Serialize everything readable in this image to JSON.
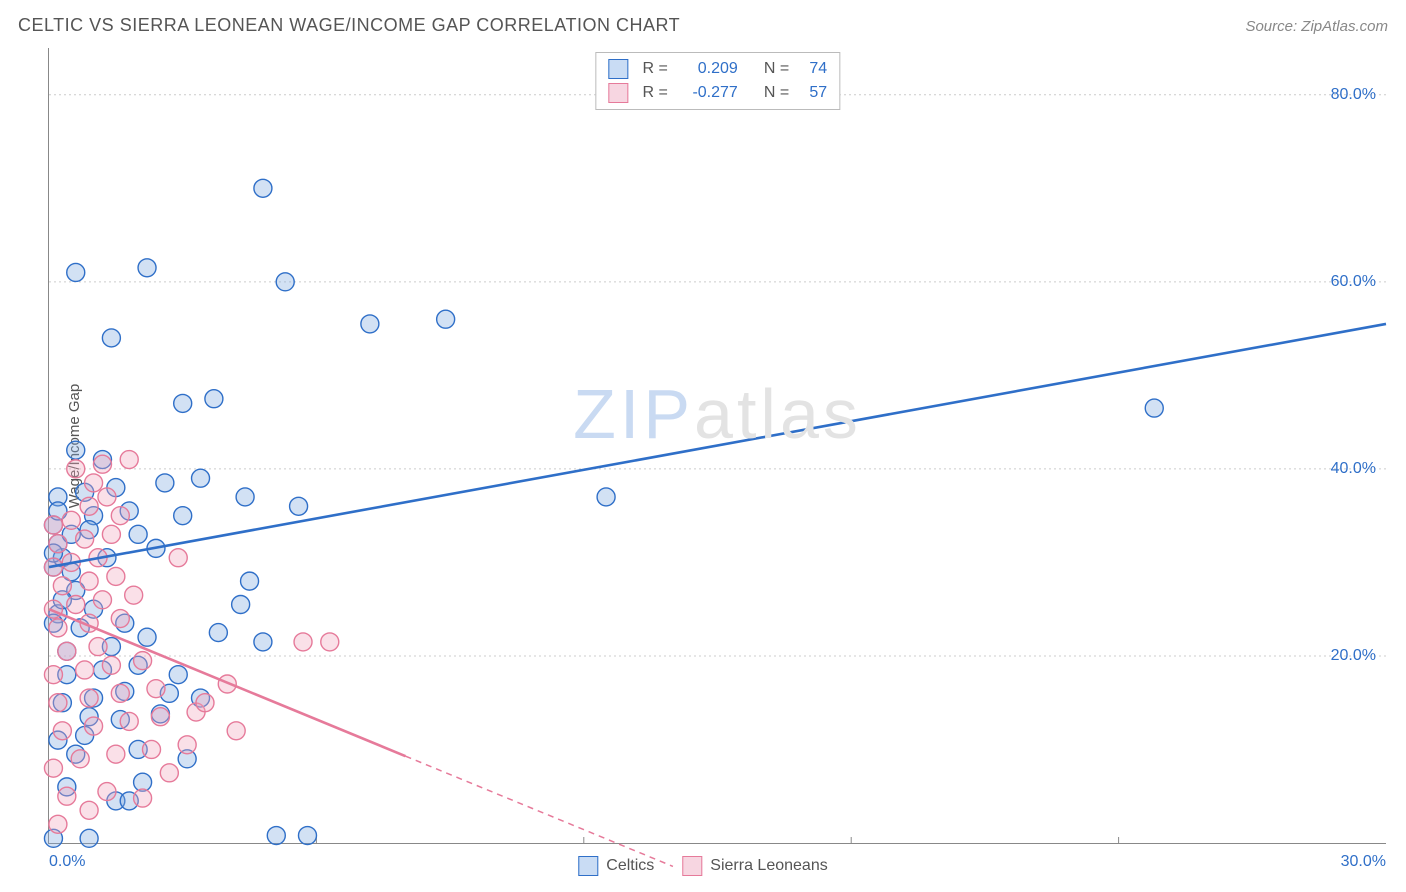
{
  "title": "CELTIC VS SIERRA LEONEAN WAGE/INCOME GAP CORRELATION CHART",
  "source": "Source: ZipAtlas.com",
  "ylabel": "Wage/Income Gap",
  "watermark": {
    "text_zip": "ZIP",
    "text_atlas": "atlas",
    "color_zip": "#c9daf2",
    "color_atlas": "#e3e3e3"
  },
  "chart": {
    "type": "scatter",
    "xlim": [
      0,
      30
    ],
    "ylim": [
      0,
      85
    ],
    "xticks": [
      0.0,
      30.0
    ],
    "xtick_labels": [
      "0.0%",
      "30.0%"
    ],
    "xtick_color": "#2f6fc8",
    "yticks": [
      20.0,
      40.0,
      60.0,
      80.0
    ],
    "ytick_labels": [
      "20.0%",
      "40.0%",
      "60.0%",
      "80.0%"
    ],
    "ytick_color": "#2f6fc8",
    "grid_color": "#cccccc",
    "grid_dash": "2 3",
    "axis_color": "#888888",
    "background_color": "#ffffff",
    "x_minor_tick_count": 4,
    "marker_radius": 9,
    "marker_fill_opacity": 0.35,
    "marker_stroke_width": 1.4,
    "trend_line_width": 2.6,
    "series": [
      {
        "name": "Celtics",
        "color_stroke": "#2f6fc8",
        "color_fill": "#7ea9e0",
        "r_value": "0.209",
        "n_value": "74",
        "trend": {
          "x1": 0,
          "y1": 29.5,
          "x2": 30,
          "y2": 55.5,
          "solid_until_x": 30
        },
        "points": [
          [
            0.1,
            0.5
          ],
          [
            0.9,
            0.5
          ],
          [
            5.1,
            0.8
          ],
          [
            5.8,
            0.8
          ],
          [
            1.5,
            4.5
          ],
          [
            1.8,
            4.5
          ],
          [
            2.1,
            6.5
          ],
          [
            0.6,
            9.5
          ],
          [
            3.1,
            9.0
          ],
          [
            0.2,
            11.0
          ],
          [
            1.6,
            13.2
          ],
          [
            2.5,
            13.8
          ],
          [
            0.3,
            15.0
          ],
          [
            1.0,
            15.5
          ],
          [
            1.7,
            16.2
          ],
          [
            2.7,
            16.0
          ],
          [
            3.4,
            15.5
          ],
          [
            4.8,
            21.5
          ],
          [
            1.2,
            18.5
          ],
          [
            2.0,
            19.0
          ],
          [
            0.4,
            20.5
          ],
          [
            1.4,
            21.0
          ],
          [
            2.2,
            22.0
          ],
          [
            3.8,
            22.5
          ],
          [
            0.2,
            24.5
          ],
          [
            1.0,
            25.0
          ],
          [
            0.6,
            27.0
          ],
          [
            4.3,
            25.5
          ],
          [
            0.1,
            29.5
          ],
          [
            0.3,
            30.5
          ],
          [
            1.3,
            30.5
          ],
          [
            0.2,
            32.0
          ],
          [
            0.5,
            33.0
          ],
          [
            0.1,
            34.0
          ],
          [
            1.0,
            35.0
          ],
          [
            1.8,
            35.5
          ],
          [
            3.0,
            35.0
          ],
          [
            5.6,
            36.0
          ],
          [
            4.4,
            37.0
          ],
          [
            0.2,
            37.0
          ],
          [
            0.8,
            37.5
          ],
          [
            1.5,
            38.0
          ],
          [
            2.6,
            38.5
          ],
          [
            3.4,
            39.0
          ],
          [
            1.2,
            41.0
          ],
          [
            0.6,
            42.0
          ],
          [
            3.0,
            47.0
          ],
          [
            3.7,
            47.5
          ],
          [
            5.3,
            60.0
          ],
          [
            1.4,
            54.0
          ],
          [
            0.6,
            61.0
          ],
          [
            2.2,
            61.5
          ],
          [
            4.8,
            70.0
          ],
          [
            7.2,
            55.5
          ],
          [
            8.9,
            56.0
          ],
          [
            12.5,
            37.0
          ],
          [
            24.8,
            46.5
          ],
          [
            0.9,
            13.5
          ],
          [
            2.0,
            10.0
          ],
          [
            0.4,
            6.0
          ],
          [
            4.5,
            28.0
          ],
          [
            0.3,
            26.0
          ],
          [
            0.7,
            23.0
          ],
          [
            2.4,
            31.5
          ],
          [
            0.9,
            33.5
          ],
          [
            0.2,
            35.5
          ],
          [
            2.0,
            33.0
          ],
          [
            0.1,
            31.0
          ],
          [
            0.5,
            29.0
          ],
          [
            0.1,
            23.5
          ],
          [
            1.7,
            23.5
          ],
          [
            0.4,
            18.0
          ],
          [
            2.9,
            18.0
          ],
          [
            0.8,
            11.5
          ]
        ]
      },
      {
        "name": "Sierra Leoneans",
        "color_stroke": "#e67a9a",
        "color_fill": "#f0a7bd",
        "r_value": "-0.277",
        "n_value": "57",
        "trend": {
          "x1": 0,
          "y1": 25.0,
          "x2": 14.0,
          "y2": -2.5,
          "solid_until_x": 8.0
        },
        "points": [
          [
            0.2,
            2.0
          ],
          [
            0.9,
            3.5
          ],
          [
            0.4,
            5.0
          ],
          [
            1.3,
            5.5
          ],
          [
            2.1,
            4.8
          ],
          [
            0.1,
            8.0
          ],
          [
            0.7,
            9.0
          ],
          [
            1.5,
            9.5
          ],
          [
            2.3,
            10.0
          ],
          [
            3.1,
            10.5
          ],
          [
            0.3,
            12.0
          ],
          [
            1.0,
            12.5
          ],
          [
            1.8,
            13.0
          ],
          [
            2.5,
            13.5
          ],
          [
            3.3,
            14.0
          ],
          [
            0.2,
            15.0
          ],
          [
            0.9,
            15.5
          ],
          [
            1.6,
            16.0
          ],
          [
            2.4,
            16.5
          ],
          [
            4.0,
            17.0
          ],
          [
            0.1,
            18.0
          ],
          [
            0.8,
            18.5
          ],
          [
            1.4,
            19.0
          ],
          [
            2.1,
            19.5
          ],
          [
            0.4,
            20.5
          ],
          [
            1.1,
            21.0
          ],
          [
            5.7,
            21.5
          ],
          [
            6.3,
            21.5
          ],
          [
            0.2,
            23.0
          ],
          [
            0.9,
            23.5
          ],
          [
            1.6,
            24.0
          ],
          [
            0.1,
            25.0
          ],
          [
            0.6,
            25.5
          ],
          [
            1.2,
            26.0
          ],
          [
            1.9,
            26.5
          ],
          [
            0.3,
            27.5
          ],
          [
            0.9,
            28.0
          ],
          [
            1.5,
            28.5
          ],
          [
            0.1,
            29.5
          ],
          [
            0.5,
            30.0
          ],
          [
            1.1,
            30.5
          ],
          [
            2.9,
            30.5
          ],
          [
            0.2,
            32.0
          ],
          [
            0.8,
            32.5
          ],
          [
            1.4,
            33.0
          ],
          [
            0.1,
            34.0
          ],
          [
            0.5,
            34.5
          ],
          [
            1.6,
            35.0
          ],
          [
            0.9,
            36.0
          ],
          [
            1.3,
            37.0
          ],
          [
            1.0,
            38.5
          ],
          [
            0.6,
            40.0
          ],
          [
            1.2,
            40.5
          ],
          [
            1.8,
            41.0
          ],
          [
            3.5,
            15.0
          ],
          [
            4.2,
            12.0
          ],
          [
            2.7,
            7.5
          ]
        ]
      }
    ]
  },
  "legend_top": {
    "rows": [
      {
        "swatch_fill": "#c9dcf4",
        "swatch_stroke": "#2f6fc8",
        "r_label": "R =",
        "r_value": "0.209",
        "n_label": "N =",
        "n_value": "74",
        "value_color": "#2f6fc8",
        "label_color": "#555555"
      },
      {
        "swatch_fill": "#f7d6e1",
        "swatch_stroke": "#e67a9a",
        "r_label": "R =",
        "r_value": "-0.277",
        "n_label": "N =",
        "n_value": "57",
        "value_color": "#2f6fc8",
        "label_color": "#555555"
      }
    ]
  },
  "legend_bottom": {
    "items": [
      {
        "label": "Celtics",
        "swatch_fill": "#c9dcf4",
        "swatch_stroke": "#2f6fc8"
      },
      {
        "label": "Sierra Leoneans",
        "swatch_fill": "#f7d6e1",
        "swatch_stroke": "#e67a9a"
      }
    ]
  }
}
